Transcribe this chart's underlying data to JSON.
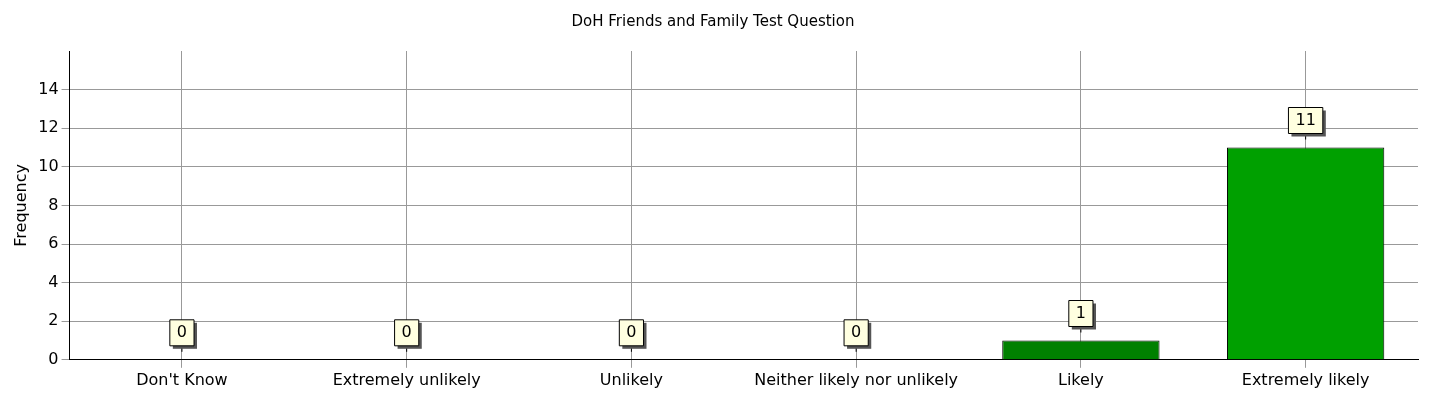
{
  "chart_data": {
    "type": "bar",
    "title": "DoH Friends and Family Test Question",
    "ylabel": "Frequency",
    "categories": [
      "Don't Know",
      "Extremely unlikely",
      "Unlikely",
      "Neither likely nor unlikely",
      "Likely",
      "Extremely likely"
    ],
    "values": [
      0,
      0,
      0,
      0,
      1,
      11
    ],
    "colors": [
      "#ff0000",
      "#ff0000",
      "#ff0000",
      "#ff8040",
      "#008000",
      "#00a000"
    ],
    "ylim": [
      0,
      16
    ],
    "yticks": [
      0,
      2,
      4,
      6,
      8,
      10,
      12,
      14
    ],
    "grid": true,
    "data_labels": true,
    "legend": false
  }
}
